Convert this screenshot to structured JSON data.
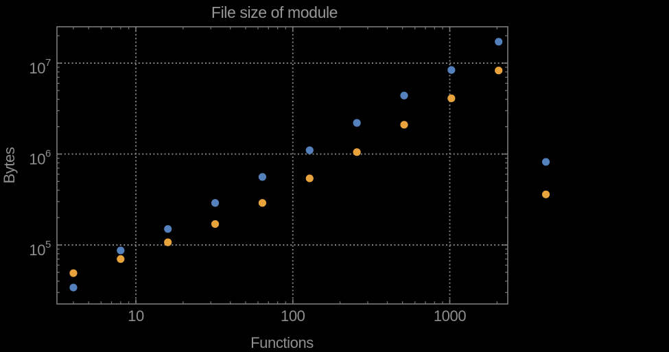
{
  "figure": {
    "background_color": "#000000",
    "text_color": "#8f8f8f",
    "frame_color": "#7b7b7b",
    "grid_color": "#848484"
  },
  "chart_data": {
    "type": "scatter",
    "title": "File size of module",
    "xlabel": "Functions",
    "ylabel": "Bytes",
    "x_scale": "log",
    "y_scale": "log",
    "grid": "dotted lines at decade ticks",
    "legend": "none",
    "x_axis": {
      "range_approx": [
        3.2,
        2340
      ],
      "ticks": [
        {
          "value": 10,
          "label": "10"
        },
        {
          "value": 100,
          "label": "100"
        },
        {
          "value": 1000,
          "label": "1000"
        }
      ],
      "minor_tick_mantissas": [
        2,
        3,
        4,
        5,
        6,
        7,
        8,
        9
      ]
    },
    "y_axis": {
      "range_approx": [
        22000,
        25000000
      ],
      "ticks": [
        {
          "value": 100000,
          "label": "10^5",
          "base": "10",
          "exponent": "5"
        },
        {
          "value": 1000000,
          "label": "10^6",
          "base": "10",
          "exponent": "6"
        },
        {
          "value": 10000000,
          "label": "10^7",
          "base": "10",
          "exponent": "7"
        }
      ],
      "minor_tick_mantissas": [
        2,
        3,
        4,
        5,
        6,
        7,
        8,
        9
      ]
    },
    "x": [
      4,
      8,
      16,
      32,
      64,
      128,
      256,
      512,
      1024,
      2048,
      4096
    ],
    "series": [
      {
        "name": "blue",
        "color": "#5480BC",
        "values": [
          34000,
          87000,
          150000,
          290000,
          560000,
          1100000,
          2200000,
          4400000,
          8400000,
          17200000,
          820000
        ]
      },
      {
        "name": "orange",
        "color": "#E8A33C",
        "values": [
          49000,
          70000,
          107000,
          170000,
          290000,
          540000,
          1050000,
          2100000,
          4100000,
          8300000,
          360000
        ]
      }
    ],
    "note_points_outside_frame": "the two points at x=4096 are drawn beyond the right edge of the plot frame"
  }
}
